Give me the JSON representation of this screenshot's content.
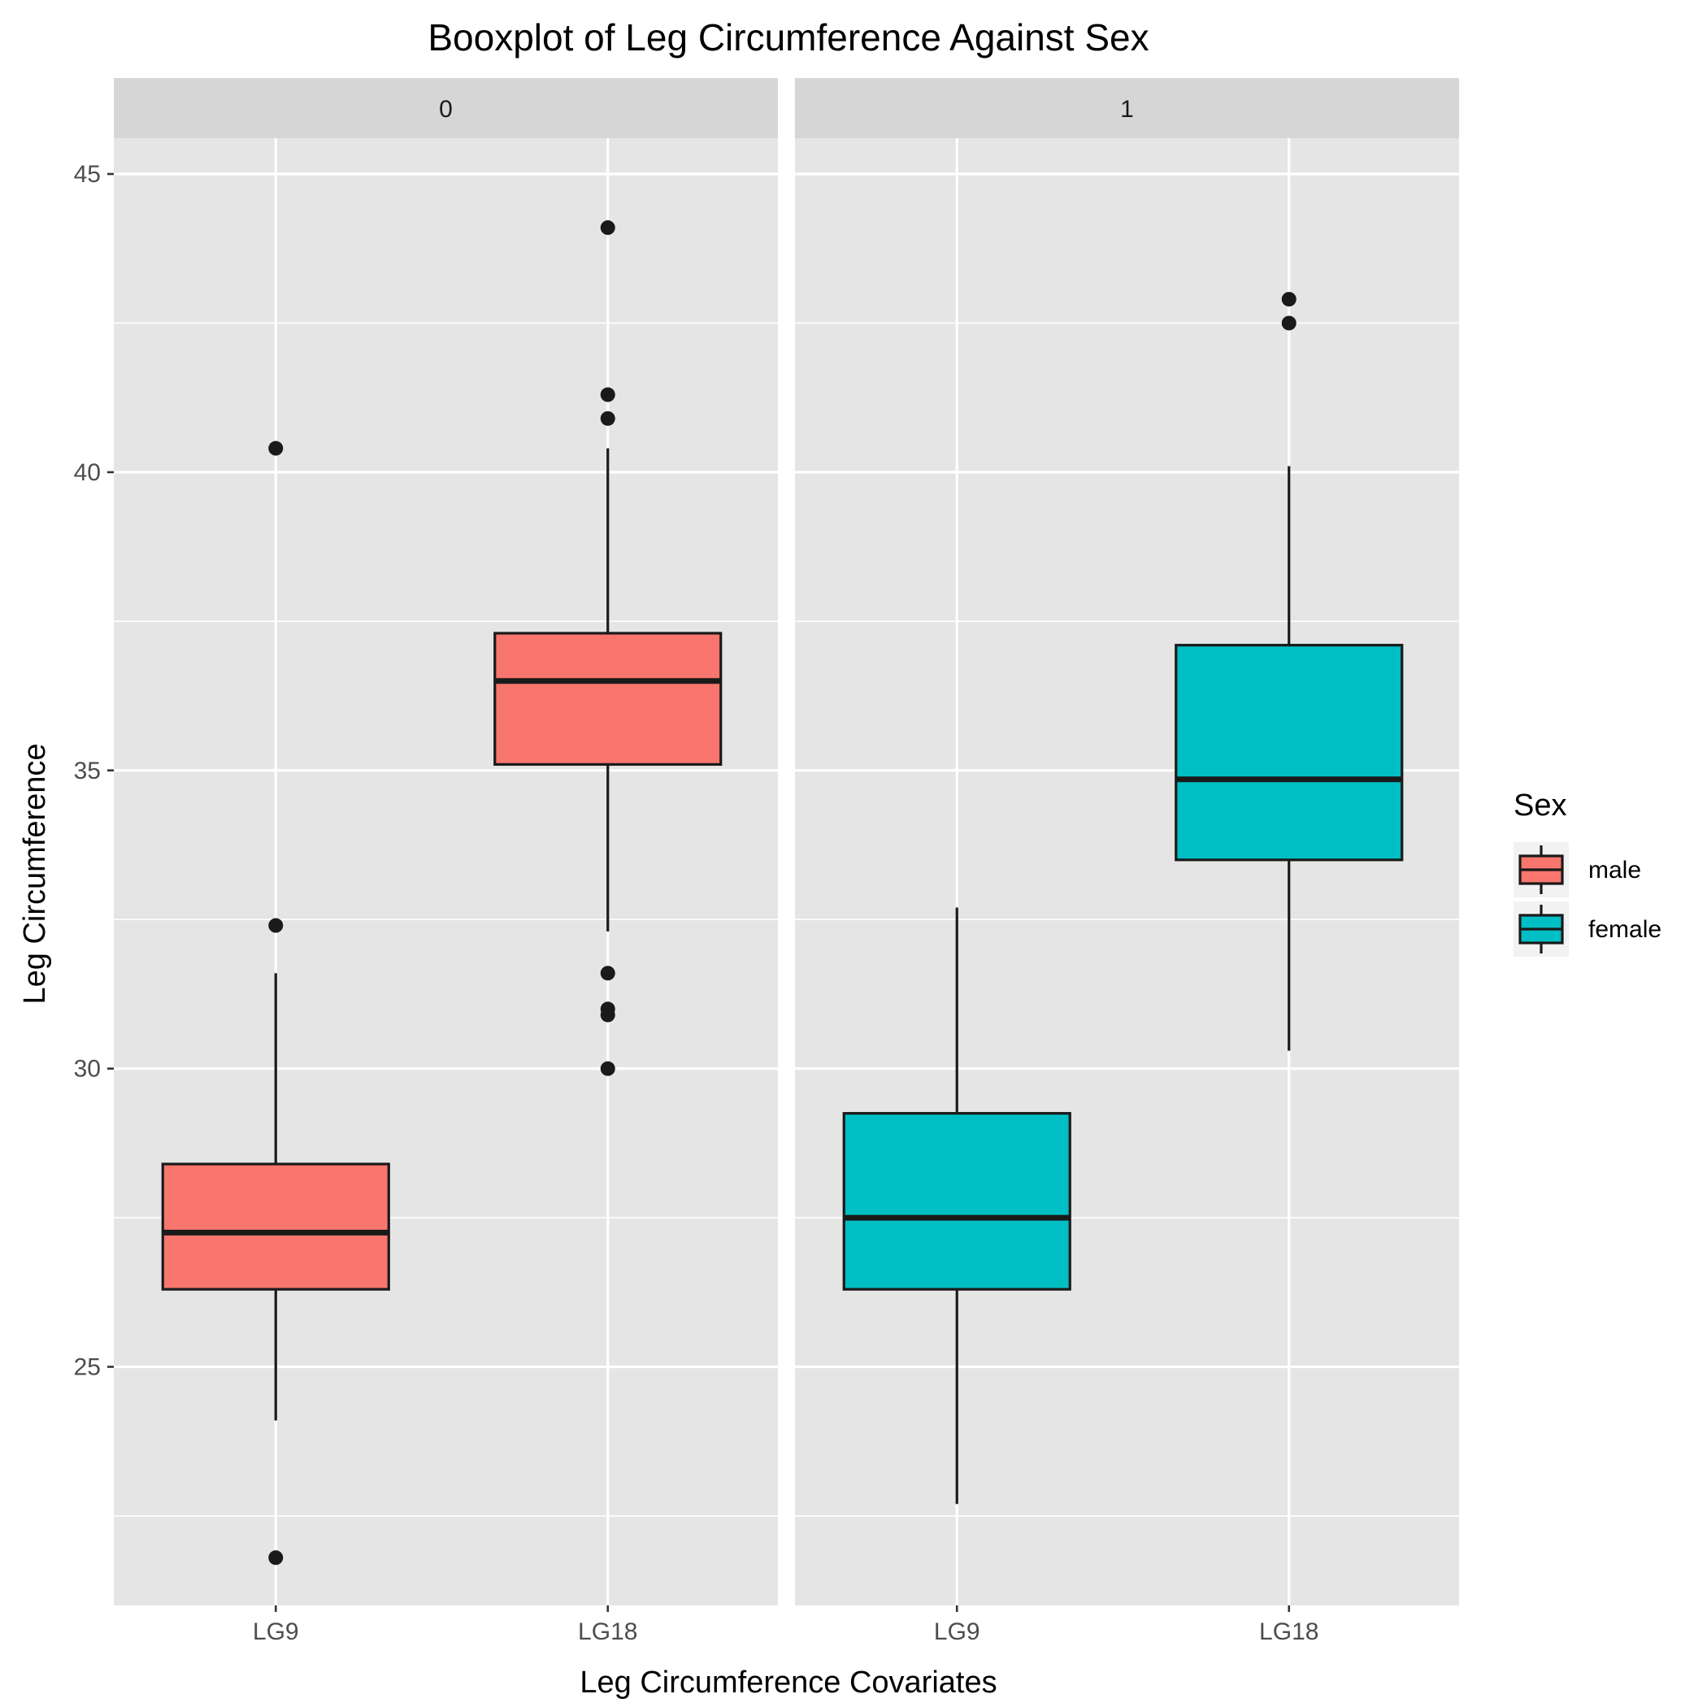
{
  "chart_data": {
    "type": "boxplot",
    "title": "Booxplot of Leg Circumference Against Sex",
    "xlabel": "Leg Circumference Covariates",
    "ylabel": "Leg Circumference",
    "ylim": [
      21,
      45.6
    ],
    "yticks": [
      25,
      30,
      35,
      40,
      45
    ],
    "ytick_labels": [
      "25",
      "30",
      "35",
      "40",
      "45"
    ],
    "grid": true,
    "categories": [
      "LG9",
      "LG18"
    ],
    "facets": [
      {
        "label": "0",
        "boxes": [
          {
            "category": "LG9",
            "group": "male",
            "lower_whisker": 24.1,
            "q1": 26.3,
            "median": 27.25,
            "q3": 28.4,
            "upper_whisker": 31.6,
            "outliers": [
              40.4,
              32.4,
              21.8
            ]
          },
          {
            "category": "LG18",
            "group": "male",
            "lower_whisker": 32.3,
            "q1": 35.1,
            "median": 36.5,
            "q3": 37.3,
            "upper_whisker": 40.4,
            "outliers": [
              44.1,
              41.3,
              40.9,
              31.6,
              31.0,
              30.9,
              30.0
            ]
          }
        ]
      },
      {
        "label": "1",
        "boxes": [
          {
            "category": "LG9",
            "group": "female",
            "lower_whisker": 22.7,
            "q1": 26.3,
            "median": 27.5,
            "q3": 29.25,
            "upper_whisker": 32.7,
            "outliers": []
          },
          {
            "category": "LG18",
            "group": "female",
            "lower_whisker": 30.3,
            "q1": 33.5,
            "median": 34.85,
            "q3": 37.1,
            "upper_whisker": 40.1,
            "outliers": [
              42.9,
              42.5
            ]
          }
        ]
      }
    ],
    "legend": {
      "title": "Sex",
      "position": "right",
      "entries": [
        {
          "label": "male",
          "color": "#F8766D"
        },
        {
          "label": "female",
          "color": "#00BFC4"
        }
      ]
    },
    "colors": {
      "male": "#F8766D",
      "female": "#00BFC4"
    }
  }
}
